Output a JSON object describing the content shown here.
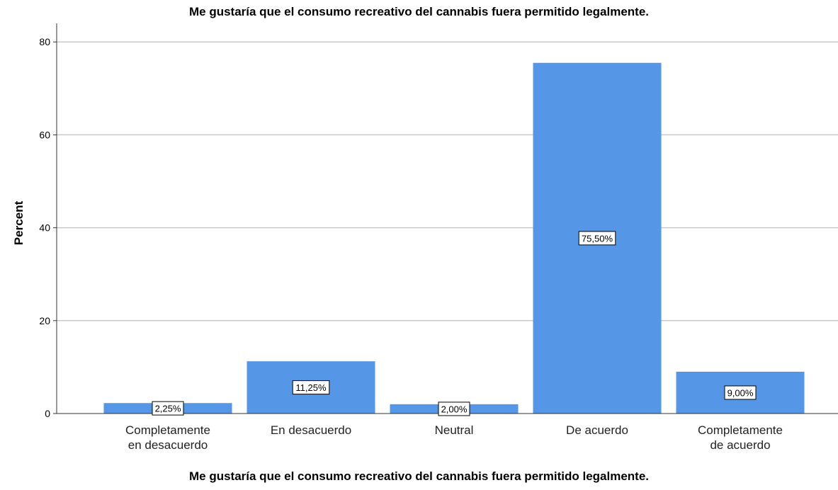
{
  "chart_data": {
    "type": "bar",
    "title": "Me gustaría que el consumo recreativo del cannabis fuera permitido legalmente.",
    "xlabel": "Me gustaría que el consumo recreativo del cannabis fuera permitido legalmente.",
    "ylabel": "Percent",
    "categories": [
      [
        "Completamente",
        "en desacuerdo"
      ],
      [
        "En desacuerdo"
      ],
      [
        "Neutral"
      ],
      [
        "De acuerdo"
      ],
      [
        "Completamente",
        "de acuerdo"
      ]
    ],
    "values": [
      2.25,
      11.25,
      2.0,
      75.5,
      9.0
    ],
    "data_labels": [
      "2,25%",
      "11,25%",
      "2,00%",
      "75,50%",
      "9,00%"
    ],
    "yticks": [
      0,
      20,
      40,
      60,
      80
    ],
    "ylim": [
      0,
      84
    ],
    "grid": true,
    "bar_color": "#5596e6"
  }
}
